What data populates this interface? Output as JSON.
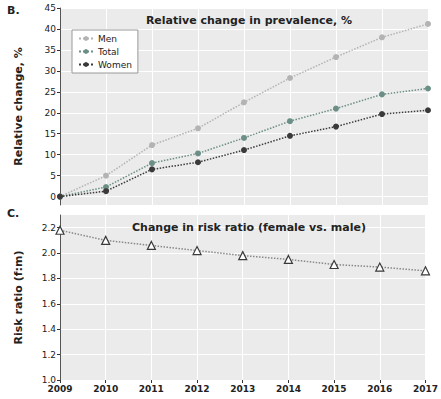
{
  "chart_data": [
    {
      "type": "line",
      "annotation": "B.",
      "title": "Relative change in prevalence, %",
      "y_label": "Relative change, %",
      "categories": [
        "2009",
        "2010",
        "2011",
        "2012",
        "2013",
        "2014",
        "2015",
        "2016",
        "2017"
      ],
      "series": [
        {
          "name": "Men",
          "color": "#b3b3b3",
          "values": [
            0,
            5,
            12.3,
            16.3,
            22.5,
            28.3,
            33.3,
            38,
            41.2
          ]
        },
        {
          "name": "Total",
          "color": "#6b8f86",
          "values": [
            0,
            2.3,
            8,
            10.3,
            14,
            18,
            21,
            24.4,
            25.8
          ]
        },
        {
          "name": "Women",
          "color": "#3a3a3a",
          "values": [
            0,
            1.3,
            6.5,
            8.2,
            11.1,
            14.5,
            16.7,
            19.7,
            20.6
          ]
        }
      ],
      "ylim": [
        -2,
        45
      ],
      "yticks": [
        0,
        5,
        10,
        15,
        20,
        25,
        30,
        35,
        40,
        45
      ],
      "grid": true,
      "legend": "upper left",
      "marker": "circle",
      "line_style": "dotted",
      "tick_labels": "y"
    },
    {
      "type": "line",
      "annotation": "C.",
      "title": "Change in risk ratio (female vs. male)",
      "y_label": "Risk ratio (f:m)",
      "categories": [
        "2009",
        "2010",
        "2011",
        "2012",
        "2013",
        "2014",
        "2015",
        "2016",
        "2017"
      ],
      "series": [
        {
          "color": "#3a3a3a",
          "values": [
            2.18,
            2.1,
            2.06,
            2.02,
            1.98,
            1.95,
            1.91,
            1.89,
            1.86
          ]
        }
      ],
      "ylim": [
        1.0,
        2.3
      ],
      "yticks": [
        {
          "value": 1.0,
          "label": "1.0"
        },
        1.2,
        1.4,
        1.6,
        1.8,
        {
          "value": 2.0,
          "label": "2.0"
        },
        2.2
      ],
      "grid": true,
      "marker": "triangle",
      "line_style": "dotted"
    }
  ]
}
